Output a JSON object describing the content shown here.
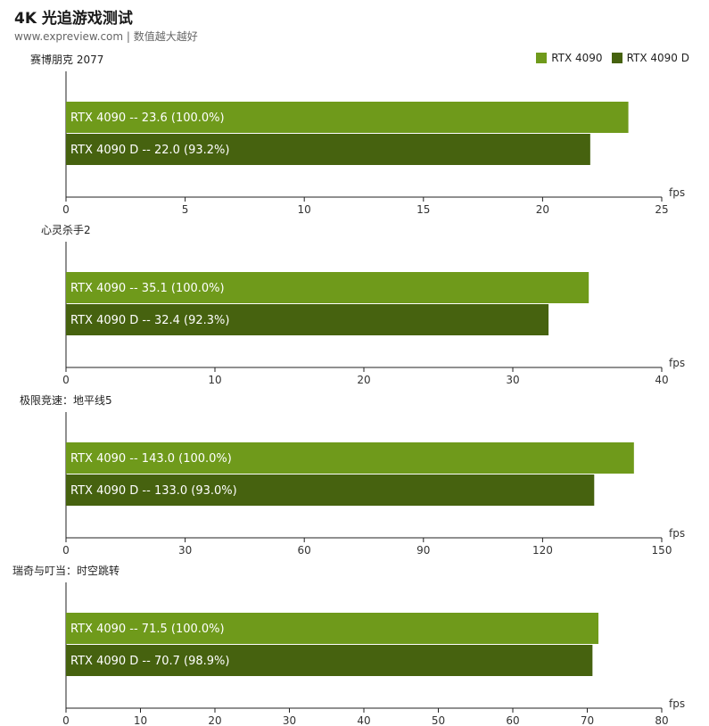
{
  "header": {
    "title": "4K 光追游戏测试",
    "subtitle": "www.expreview.com | 数值越大越好"
  },
  "legend": [
    {
      "name": "RTX 4090",
      "color": "#6f9a1b"
    },
    {
      "name": "RTX 4090 D",
      "color": "#46620f"
    }
  ],
  "chart_data": [
    {
      "type": "bar",
      "orientation": "horizontal",
      "title": "赛博朋克 2077",
      "unit": "fps",
      "xlim": [
        0,
        25
      ],
      "ticks": [
        0,
        5,
        10,
        15,
        20,
        25
      ],
      "series": [
        {
          "name": "RTX 4090",
          "value": 23.6,
          "label": "RTX 4090  --  23.6 (100.0%)"
        },
        {
          "name": "RTX 4090 D",
          "value": 22.0,
          "label": "RTX 4090 D  --  22.0 (93.2%)"
        }
      ]
    },
    {
      "type": "bar",
      "orientation": "horizontal",
      "title": "心灵杀手2",
      "unit": "fps",
      "xlim": [
        0,
        40
      ],
      "ticks": [
        0,
        10,
        20,
        30,
        40
      ],
      "series": [
        {
          "name": "RTX 4090",
          "value": 35.1,
          "label": "RTX 4090  --  35.1 (100.0%)"
        },
        {
          "name": "RTX 4090 D",
          "value": 32.4,
          "label": "RTX 4090 D  --  32.4 (92.3%)"
        }
      ]
    },
    {
      "type": "bar",
      "orientation": "horizontal",
      "title": "极限竞速：地平线5",
      "unit": "fps",
      "xlim": [
        0,
        150
      ],
      "ticks": [
        0,
        30,
        60,
        90,
        120,
        150
      ],
      "series": [
        {
          "name": "RTX 4090",
          "value": 143.0,
          "label": "RTX 4090  --  143.0 (100.0%)"
        },
        {
          "name": "RTX 4090 D",
          "value": 133.0,
          "label": "RTX 4090 D  --  133.0 (93.0%)"
        }
      ]
    },
    {
      "type": "bar",
      "orientation": "horizontal",
      "title": "瑞奇与叮当：时空跳转",
      "unit": "fps",
      "xlim": [
        0,
        80
      ],
      "ticks": [
        0,
        10,
        20,
        30,
        40,
        50,
        60,
        70,
        80
      ],
      "series": [
        {
          "name": "RTX 4090",
          "value": 71.5,
          "label": "RTX 4090  --  71.5 (100.0%)"
        },
        {
          "name": "RTX 4090 D",
          "value": 70.7,
          "label": "RTX 4090 D  --  70.7 (98.9%)"
        }
      ]
    }
  ]
}
